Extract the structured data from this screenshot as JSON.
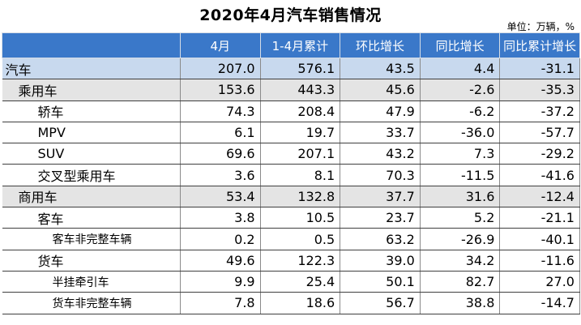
{
  "title": "2020年4月汽车销售情况",
  "unit": "单位：万辆，%",
  "headers": [
    "",
    "4月",
    "1-4月累计",
    "环比增长",
    "同比增长",
    "同比累计增长"
  ],
  "rows": [
    {
      "name": "汽车",
      "indent": 0,
      "style": "total",
      "values": [
        "207.0",
        "576.1",
        "43.5",
        "4.4",
        "-31.1"
      ]
    },
    {
      "name": "乘用车",
      "indent": 1,
      "style": "cat",
      "values": [
        "153.6",
        "443.3",
        "45.6",
        "-2.6",
        "-35.3"
      ]
    },
    {
      "name": "轿车",
      "indent": 2,
      "style": "",
      "values": [
        "74.3",
        "208.4",
        "47.9",
        "-6.2",
        "-37.2"
      ]
    },
    {
      "name": "MPV",
      "indent": 2,
      "style": "",
      "values": [
        "6.1",
        "19.7",
        "33.7",
        "-36.0",
        "-57.7"
      ]
    },
    {
      "name": "SUV",
      "indent": 2,
      "style": "",
      "values": [
        "69.6",
        "207.1",
        "43.2",
        "7.3",
        "-29.2"
      ]
    },
    {
      "name": "交叉型乘用车",
      "indent": 2,
      "style": "",
      "values": [
        "3.6",
        "8.1",
        "70.3",
        "-11.5",
        "-41.6"
      ]
    },
    {
      "name": "商用车",
      "indent": 1,
      "style": "cat",
      "values": [
        "53.4",
        "132.8",
        "37.7",
        "31.6",
        "-12.4"
      ]
    },
    {
      "name": "客车",
      "indent": 2,
      "style": "",
      "values": [
        "3.8",
        "10.5",
        "23.7",
        "5.2",
        "-21.1"
      ]
    },
    {
      "name": "客车非完整车辆",
      "indent": 3,
      "style": "small",
      "values": [
        "0.2",
        "0.5",
        "63.2",
        "-26.9",
        "-40.1"
      ]
    },
    {
      "name": "货车",
      "indent": 2,
      "style": "",
      "values": [
        "49.6",
        "122.3",
        "39.0",
        "34.2",
        "-11.6"
      ]
    },
    {
      "name": "半挂牵引车",
      "indent": 3,
      "style": "small",
      "values": [
        "9.9",
        "25.4",
        "50.1",
        "82.7",
        "27.0"
      ]
    },
    {
      "name": "货车非完整车辆",
      "indent": 3,
      "style": "small",
      "values": [
        "7.8",
        "18.6",
        "56.7",
        "38.8",
        "-14.7"
      ]
    }
  ]
}
